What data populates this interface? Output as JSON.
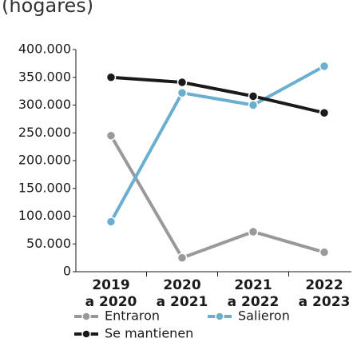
{
  "chart_data": {
    "type": "line",
    "title": "(hogares)",
    "categories": [
      [
        "2019",
        "a 2020"
      ],
      [
        "2020",
        "a 2021"
      ],
      [
        "2021",
        "a 2022"
      ],
      [
        "2022",
        "a 2023"
      ]
    ],
    "series": [
      {
        "name": "Entraron",
        "color": "#999999",
        "values": [
          245000,
          25000,
          72000,
          35000
        ]
      },
      {
        "name": "Salieron",
        "color": "#6aafd0",
        "values": [
          90000,
          322000,
          300000,
          370000
        ]
      },
      {
        "name": "Se mantienen",
        "color": "#1a1a1a",
        "values": [
          350000,
          341000,
          316000,
          286000
        ]
      }
    ],
    "ylim": [
      0,
      400000
    ],
    "yticks": [
      0,
      {
        "value": 50000,
        "label": "50.000"
      },
      {
        "value": 100000,
        "label": "100.000"
      },
      {
        "value": 150000,
        "label": "150.000"
      },
      {
        "value": 200000,
        "label": "200.000"
      },
      {
        "value": 250000,
        "label": "250.000"
      },
      {
        "value": 300000,
        "label": "300.000"
      },
      {
        "value": 350000,
        "label": "350.000"
      },
      {
        "value": 400000,
        "label": "400.000"
      }
    ],
    "grid": false,
    "legend": "bottom"
  }
}
